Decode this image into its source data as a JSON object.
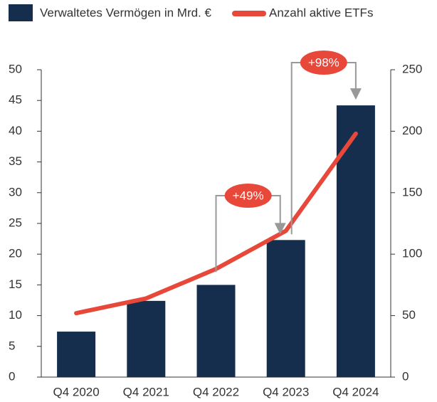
{
  "chart_data": {
    "type": "bar_line",
    "categories": [
      "Q4 2020",
      "Q4 2021",
      "Q4 2022",
      "Q4 2023",
      "Q4 2024"
    ],
    "series": [
      {
        "name": "Verwaltetes Vermögen in Mrd. €",
        "color": "#152e4d",
        "type": "bar",
        "values": [
          7.4,
          12.4,
          15,
          22.3,
          44.2
        ]
      },
      {
        "name": "Anzahl aktive ETFs",
        "color": "#e8483a",
        "type": "line",
        "axis": "y2",
        "values": [
          52,
          64,
          88,
          119,
          198
        ]
      }
    ],
    "ylim": [
      0,
      50
    ],
    "yticks": [
      0,
      5,
      10,
      15,
      20,
      25,
      30,
      35,
      40,
      45,
      50
    ],
    "y2lim": [
      0,
      250
    ],
    "y2ticks": [
      0,
      50,
      100,
      150,
      200,
      250
    ],
    "annotations": [
      "+49%",
      "+98%"
    ]
  }
}
